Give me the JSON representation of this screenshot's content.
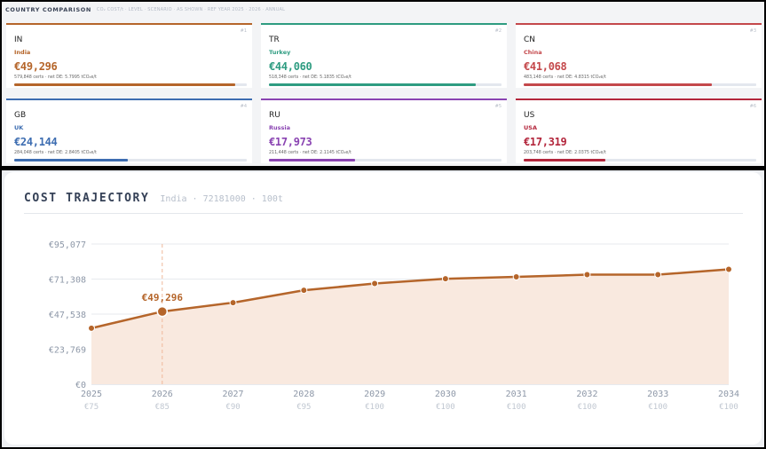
{
  "header": {
    "title": "COUNTRY COMPARISON",
    "subtitle": "CO₂ COST/t · LEVEL · SCENARIO · AS SHOWN · REF YEAR 2025 · 2026 · ANNUAL"
  },
  "countries": [
    {
      "rank": "#1",
      "code": "IN",
      "name": "India",
      "price": "€49,296",
      "certs": "579,848 certs",
      "netde": "net DE: 5.7995 tCO₂e/t",
      "share": 0.95,
      "color": "#b5652a"
    },
    {
      "rank": "#2",
      "code": "TR",
      "name": "Turkey",
      "price": "€44,060",
      "certs": "518,348 certs",
      "netde": "net DE: 5.1835 tCO₂e/t",
      "share": 0.89,
      "color": "#2e9c81"
    },
    {
      "rank": "#3",
      "code": "CN",
      "name": "China",
      "price": "€41,068",
      "certs": "483,148 certs",
      "netde": "net DE: 4.8315 tCO₂e/t",
      "share": 0.81,
      "color": "#c4484b"
    },
    {
      "rank": "#4",
      "code": "GB",
      "name": "UK",
      "price": "€24,144",
      "certs": "284,048 certs",
      "netde": "net DE: 2.8405 tCO₂e/t",
      "share": 0.49,
      "color": "#3d6db1"
    },
    {
      "rank": "#5",
      "code": "RU",
      "name": "Russia",
      "price": "€17,973",
      "certs": "211,448 certs",
      "netde": "net DE: 2.1145 tCO₂e/t",
      "share": 0.37,
      "color": "#8a44b2"
    },
    {
      "rank": "#6",
      "code": "US",
      "name": "USA",
      "price": "€17,319",
      "certs": "203,748 certs",
      "netde": "net DE: 2.0375 tCO₂e/t",
      "share": 0.35,
      "color": "#b3263c"
    }
  ],
  "trajectory": {
    "title": "COST TRAJECTORY",
    "subtitle": "India · 72181000 · 100t"
  },
  "chart_data": {
    "type": "area",
    "x": [
      "2025",
      "2026",
      "2027",
      "2028",
      "2029",
      "2030",
      "2031",
      "2032",
      "2033",
      "2034"
    ],
    "x_secondary": [
      "€75",
      "€85",
      "€90",
      "€95",
      "€100",
      "€100",
      "€100",
      "€100",
      "€100",
      "€100"
    ],
    "values": [
      38000,
      49296,
      55300,
      63700,
      68300,
      71500,
      72800,
      74300,
      74300,
      77900
    ],
    "yticks": [
      "€0",
      "€23,769",
      "€47,538",
      "€71,308",
      "€95,077"
    ],
    "ytick_values": [
      0,
      23769,
      47538,
      71308,
      95077
    ],
    "ylim": [
      0,
      95077
    ],
    "highlight_index": 1,
    "highlight_label": "€49,296",
    "grid": true,
    "color": "#b5652a",
    "fill": "#f9e9df"
  }
}
